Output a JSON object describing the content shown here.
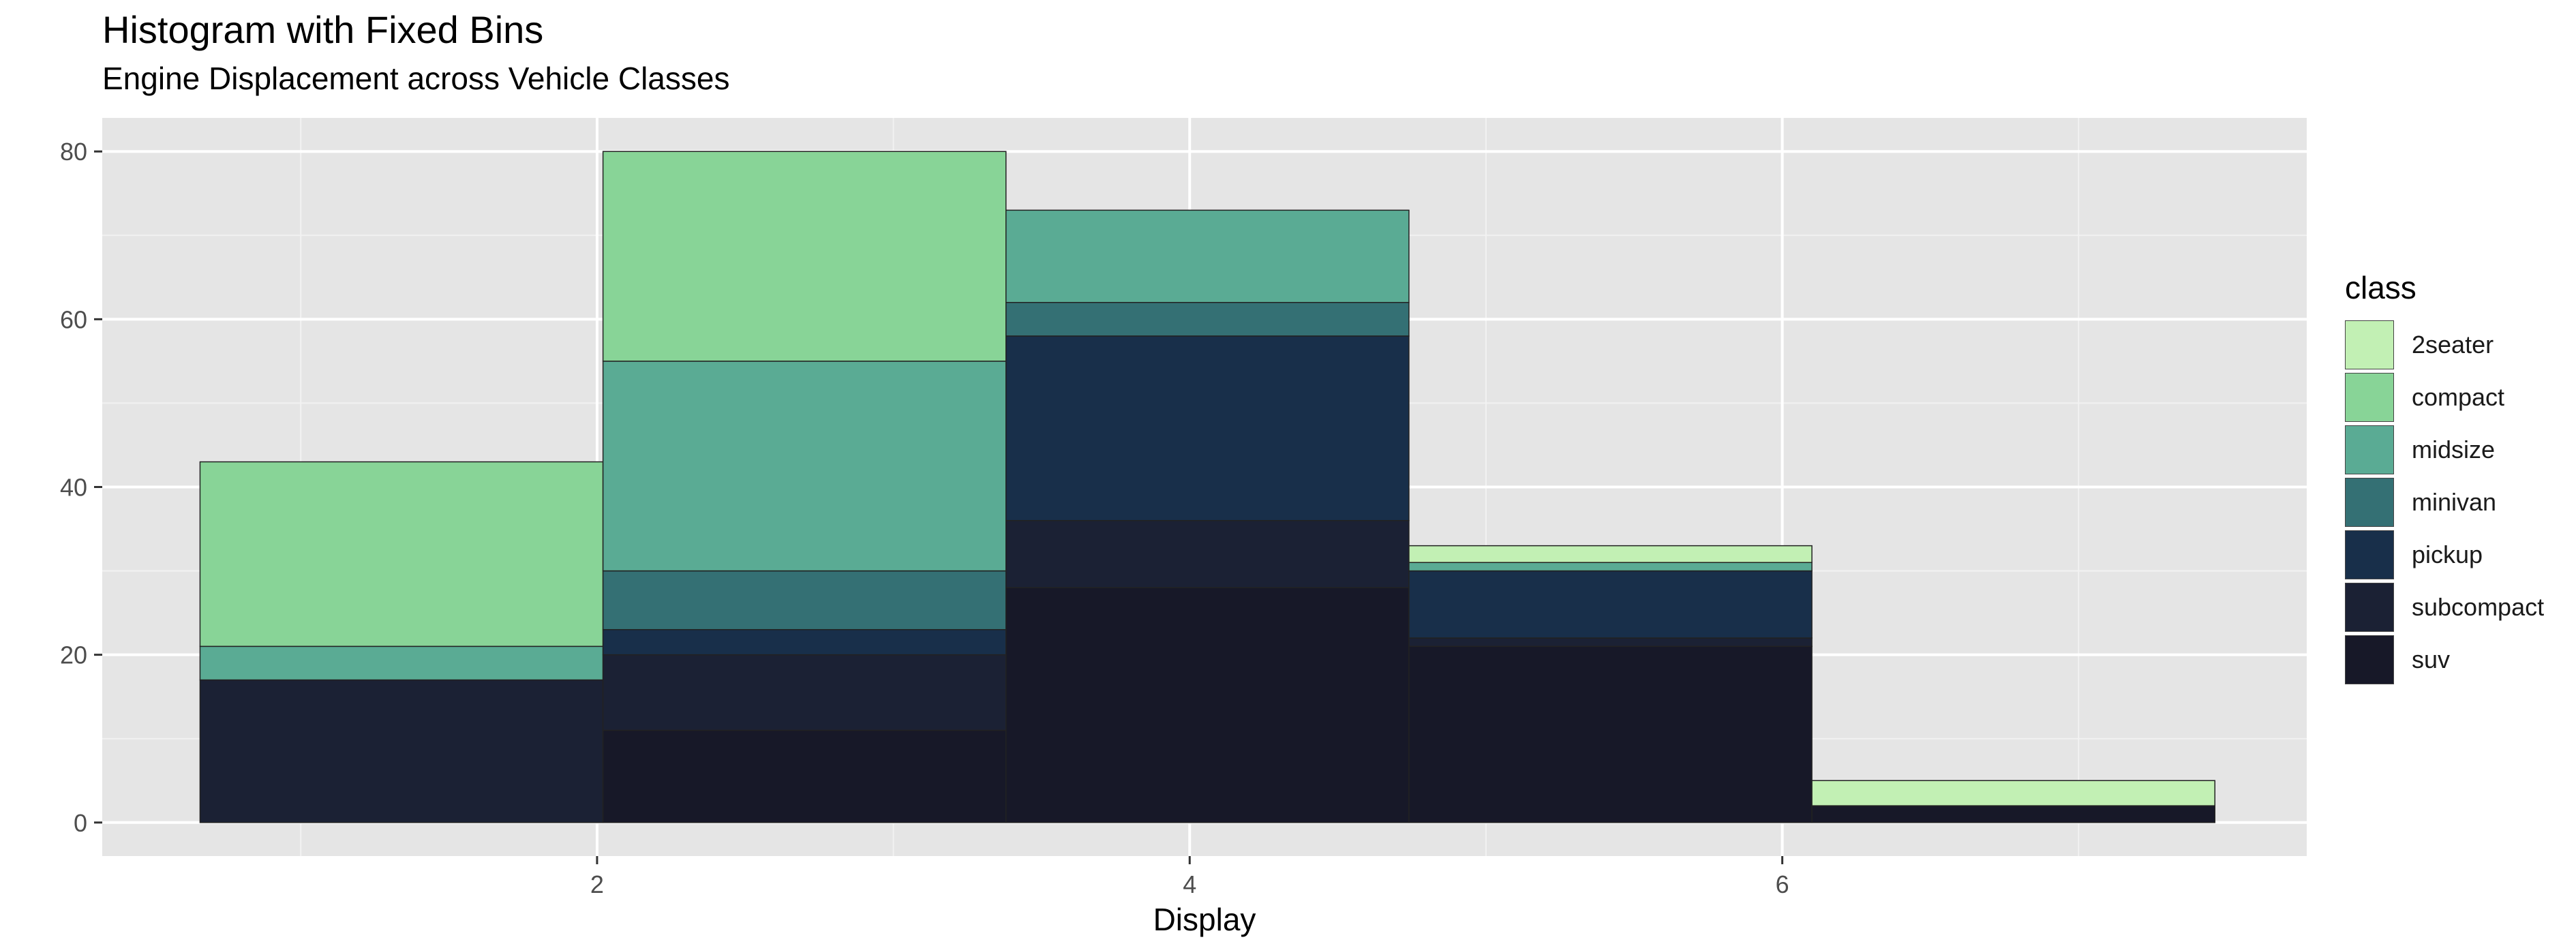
{
  "header": {
    "title": "Histogram with Fixed Bins",
    "subtitle": "Engine Displacement across Vehicle Classes"
  },
  "colors": {
    "2seater": "#c2f0b4",
    "compact": "#88d497",
    "midsize": "#5aab94",
    "minivan": "#347074",
    "pickup": "#182f4a",
    "subcompact": "#1b2134",
    "suv": "#171828"
  },
  "chart_data": {
    "type": "bar",
    "stacked": true,
    "title": "Histogram with Fixed Bins",
    "subtitle": "Engine Displacement across Vehicle Classes",
    "xlabel": "Display",
    "ylabel": "",
    "xlim": [
      0.33,
      7.77
    ],
    "ylim": [
      -4,
      84
    ],
    "x_ticks": [
      2,
      4,
      6
    ],
    "y_ticks": [
      0,
      20,
      40,
      60,
      80
    ],
    "grid": true,
    "legend_title": "class",
    "legend_position": "right",
    "bins": [
      {
        "x0": 0.66,
        "x1": 2.02
      },
      {
        "x0": 2.02,
        "x1": 3.38
      },
      {
        "x0": 3.38,
        "x1": 4.74
      },
      {
        "x0": 4.74,
        "x1": 6.1
      },
      {
        "x0": 6.1,
        "x1": 7.46
      }
    ],
    "stack_order": [
      "suv",
      "subcompact",
      "pickup",
      "minivan",
      "midsize",
      "compact",
      "2seater"
    ],
    "series": [
      {
        "name": "2seater",
        "values": [
          0,
          0,
          0,
          2,
          3
        ]
      },
      {
        "name": "compact",
        "values": [
          22,
          25,
          0,
          0,
          0
        ]
      },
      {
        "name": "midsize",
        "values": [
          4,
          25,
          11,
          1,
          0
        ]
      },
      {
        "name": "minivan",
        "values": [
          0,
          7,
          4,
          0,
          0
        ]
      },
      {
        "name": "pickup",
        "values": [
          0,
          3,
          22,
          8,
          0
        ]
      },
      {
        "name": "subcompact",
        "values": [
          17,
          9,
          8,
          1,
          0
        ]
      },
      {
        "name": "suv",
        "values": [
          0,
          11,
          28,
          21,
          2
        ]
      }
    ]
  }
}
